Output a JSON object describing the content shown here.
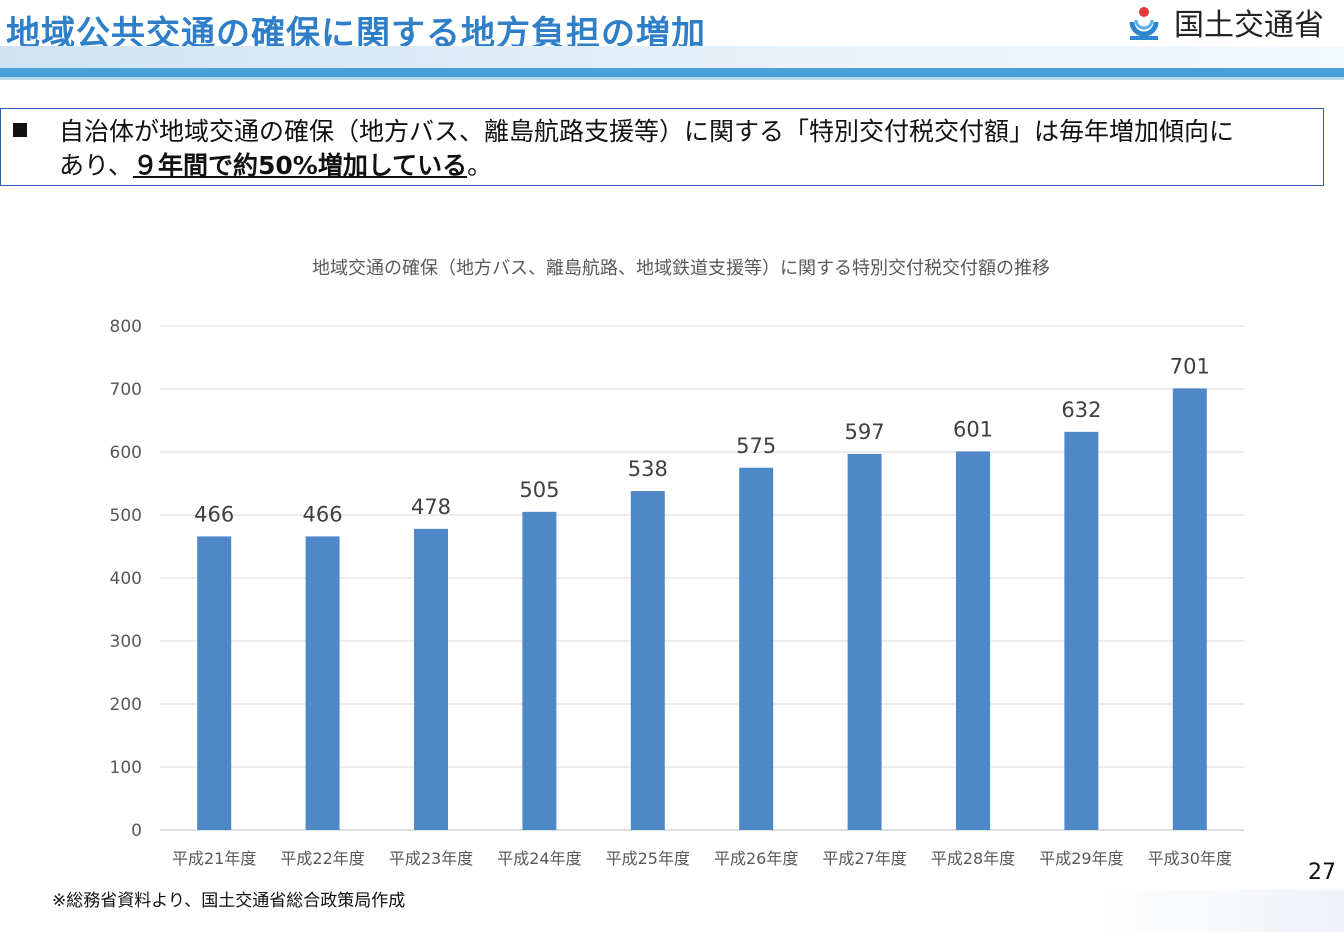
{
  "header": {
    "title": "地域公共交通の確保に関する地方負担の増加",
    "logo_text": "国土交通省",
    "logo_icon": "mlit-logo-icon"
  },
  "summary": {
    "part1": "自治体が地域交通の確保（地方バス、離島航路支援等）に関する「特別交付税交付額」は毎年増加傾向に",
    "part2": "あり、",
    "emphasis": "９年間で約50%増加している",
    "part3": "。"
  },
  "chart_data": {
    "type": "bar",
    "title": "地域交通の確保（地方バス、離島航路、地域鉄道支援等）に関する特別交付税交付額の推移",
    "categories": [
      "平成21年度",
      "平成22年度",
      "平成23年度",
      "平成24年度",
      "平成25年度",
      "平成26年度",
      "平成27年度",
      "平成28年度",
      "平成29年度",
      "平成30年度"
    ],
    "values": [
      466,
      466,
      478,
      505,
      538,
      575,
      597,
      601,
      632,
      701
    ],
    "yticks": [
      "0",
      "100",
      "200",
      "300",
      "400",
      "500",
      "600",
      "700",
      "800"
    ],
    "ylim": [
      0,
      800
    ],
    "bar_color": "#4f88c6",
    "grid": true,
    "legend": "none"
  },
  "footer": {
    "source": "※総務省資料より、国土交通省総合政策局作成",
    "page_number": "27"
  }
}
